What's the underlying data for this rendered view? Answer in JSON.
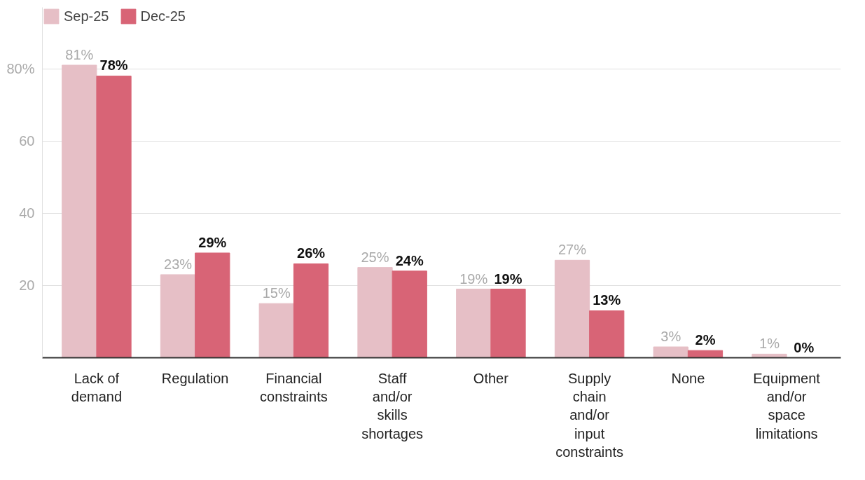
{
  "chart_data": {
    "type": "bar",
    "categories": [
      "Lack of demand",
      "Regulation",
      "Financial constraints",
      "Staff and/or skills shortages",
      "Other",
      "Supply chain and/or input constraints",
      "None",
      "Equipment and/or space limitations"
    ],
    "series": [
      {
        "name": "Sep-25",
        "color": "#e6bfc6",
        "values": [
          81,
          23,
          15,
          25,
          19,
          27,
          3,
          1
        ],
        "value_labels": [
          "81%",
          "23%",
          "15%",
          "25%",
          "19%",
          "27%",
          "3%",
          "1%"
        ]
      },
      {
        "name": "Dec-25",
        "color": "#d86476",
        "values": [
          78,
          29,
          26,
          24,
          19,
          13,
          2,
          0
        ],
        "value_labels": [
          "78%",
          "29%",
          "26%",
          "24%",
          "19%",
          "13%",
          "2%",
          "0%"
        ]
      }
    ],
    "ylim": [
      0,
      97
    ],
    "yticks": [
      20,
      40,
      60,
      {
        "value": 80,
        "label": "80%"
      }
    ],
    "grid": "y",
    "legend": "top left"
  }
}
